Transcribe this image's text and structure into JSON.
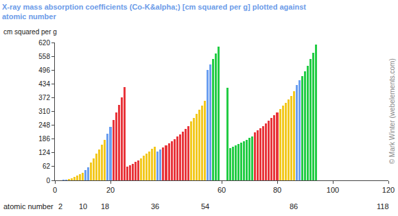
{
  "chart_data": {
    "type": "bar",
    "title": "X-ray mass absorption coefficients (Co-K&alpha;) [cm squared per g] plotted against atomic number",
    "y_label": "cm squared per g",
    "x_label": "atomic number",
    "copyright": "© Mark Winter (webelements.com)",
    "x": [
      1,
      2,
      3,
      4,
      5,
      6,
      7,
      8,
      9,
      10,
      11,
      12,
      13,
      14,
      15,
      16,
      17,
      18,
      19,
      20,
      21,
      22,
      23,
      24,
      25,
      26,
      27,
      28,
      29,
      30,
      31,
      32,
      33,
      34,
      35,
      36,
      37,
      38,
      39,
      40,
      41,
      42,
      43,
      44,
      45,
      46,
      47,
      48,
      49,
      50,
      51,
      52,
      53,
      54,
      55,
      56,
      57,
      58,
      59,
      60,
      61,
      62,
      63,
      64,
      65,
      66,
      67,
      68,
      69,
      70,
      71,
      72,
      73,
      74,
      75,
      76,
      77,
      78,
      79,
      80,
      81,
      82,
      83,
      84,
      85,
      86,
      87,
      88,
      89,
      90,
      91,
      92,
      93,
      94
    ],
    "values": [
      0.5,
      1,
      2,
      3.5,
      6,
      10,
      15,
      21,
      27,
      33,
      45,
      60,
      80,
      100,
      120,
      140,
      160,
      182,
      210,
      240,
      272,
      305,
      340,
      372,
      420,
      62,
      68,
      75,
      82,
      90,
      100,
      110,
      120,
      130,
      142,
      150,
      130,
      140,
      148,
      157,
      167,
      176,
      186,
      196,
      208,
      220,
      232,
      245,
      265,
      282,
      300,
      318,
      337,
      358,
      496,
      521,
      545,
      570,
      600,
      null,
      null,
      415,
      145,
      150,
      157,
      163,
      170,
      176,
      183,
      190,
      197,
      215,
      225,
      235,
      245,
      257,
      268,
      280,
      292,
      305,
      320,
      335,
      350,
      365,
      380,
      400,
      430,
      450,
      470,
      490,
      515,
      545,
      575,
      612
    ],
    "colors": [
      "#6a9ef0",
      "#f2c81e",
      "#6a9ef0",
      "#6a9ef0",
      "#f2c81e",
      "#f2c81e",
      "#f2c81e",
      "#f2c81e",
      "#f2c81e",
      "#f2c81e",
      "#6a9ef0",
      "#6a9ef0",
      "#f2c81e",
      "#f2c81e",
      "#f2c81e",
      "#f2c81e",
      "#f2c81e",
      "#f2c81e",
      "#6a9ef0",
      "#6a9ef0",
      "#e8343a",
      "#e8343a",
      "#e8343a",
      "#e8343a",
      "#e8343a",
      "#e8343a",
      "#e8343a",
      "#e8343a",
      "#e8343a",
      "#e8343a",
      "#f2c81e",
      "#f2c81e",
      "#f2c81e",
      "#f2c81e",
      "#f2c81e",
      "#f2c81e",
      "#6a9ef0",
      "#6a9ef0",
      "#e8343a",
      "#e8343a",
      "#e8343a",
      "#e8343a",
      "#e8343a",
      "#e8343a",
      "#e8343a",
      "#e8343a",
      "#e8343a",
      "#e8343a",
      "#f2c81e",
      "#f2c81e",
      "#f2c81e",
      "#f2c81e",
      "#f2c81e",
      "#f2c81e",
      "#6a9ef0",
      "#6a9ef0",
      "#22cc44",
      "#22cc44",
      "#22cc44",
      "#22cc44",
      "#22cc44",
      "#22cc44",
      "#22cc44",
      "#22cc44",
      "#22cc44",
      "#22cc44",
      "#22cc44",
      "#22cc44",
      "#22cc44",
      "#22cc44",
      "#22cc44",
      "#e8343a",
      "#e8343a",
      "#e8343a",
      "#e8343a",
      "#e8343a",
      "#e8343a",
      "#e8343a",
      "#e8343a",
      "#e8343a",
      "#f2c81e",
      "#f2c81e",
      "#f2c81e",
      "#f2c81e",
      "#f2c81e",
      "#f2c81e",
      "#6a9ef0",
      "#6a9ef0",
      "#22cc44",
      "#22cc44",
      "#22cc44",
      "#22cc44",
      "#22cc44",
      "#22cc44"
    ],
    "xlim": [
      0,
      120
    ],
    "xticks": [
      0,
      20,
      60,
      80,
      100,
      120
    ],
    "secondary_xticks": [
      2,
      10,
      18,
      36,
      54,
      86,
      118
    ],
    "ylim": [
      0,
      620
    ],
    "yticks": [
      0,
      62,
      124,
      186,
      248,
      310,
      372,
      434,
      496,
      558,
      620
    ],
    "grid": false
  }
}
